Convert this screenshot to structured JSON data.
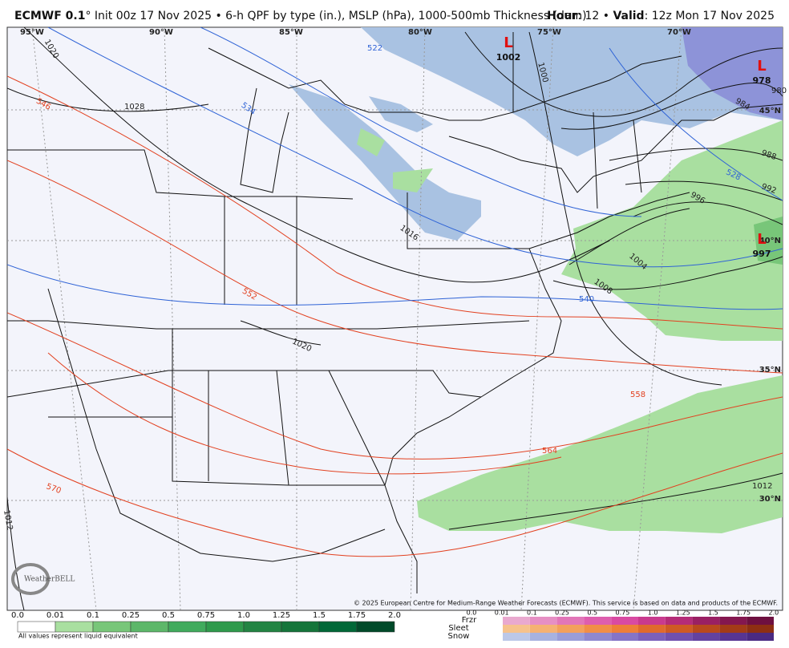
{
  "header": {
    "model": "ECMWF 0.1",
    "description": "° Init 00z 17 Nov 2025 • 6-h QPF by type (in.), MSLP (hPa), 1000-500mb Thickness (dam)",
    "hour_label": "Hour",
    "hour_value": ": 12 •",
    "valid_label": "Valid",
    "valid_value": ": 12z Mon 17 Nov 2025"
  },
  "map": {
    "longitudes": [
      "95°W",
      "90°W",
      "85°W",
      "80°W",
      "75°W",
      "70°W"
    ],
    "latitudes": [
      "45°N",
      "40°N",
      "35°N",
      "30°N"
    ],
    "lows": [
      {
        "symbol": "L",
        "pressure": "1002"
      },
      {
        "symbol": "L",
        "pressure": "978"
      },
      {
        "symbol": "L",
        "pressure": "997"
      }
    ],
    "isobars": [
      "1020",
      "1028",
      "1016",
      "1020",
      "1000",
      "980",
      "984",
      "988",
      "992",
      "996",
      "1004",
      "1008",
      "1012",
      "1012"
    ],
    "thickness": [
      "522",
      "534",
      "546",
      "552",
      "540",
      "528",
      "558",
      "564",
      "570"
    ],
    "logo": "WeatherBELL",
    "copyright": "© 2025 European Centre for Medium-Range Weather Forecasts (ECMWF). This service is based on data and products of the ECMWF."
  },
  "legend": {
    "qpf_ticks": [
      "0.0",
      "0.01",
      "0.1",
      "0.25",
      "0.5",
      "0.75",
      "1.0",
      "1.25",
      "1.5",
      "1.75",
      "2.0"
    ],
    "note": "All values represent liquid equivalent",
    "types": [
      "Frzr",
      "Sleet",
      "Snow"
    ],
    "type_ticks": [
      "0.0",
      "0.01",
      "0.1",
      "0.25",
      "0.5",
      "0.75",
      "1.0",
      "1.25",
      "1.5",
      "1.75",
      "2.0"
    ]
  }
}
